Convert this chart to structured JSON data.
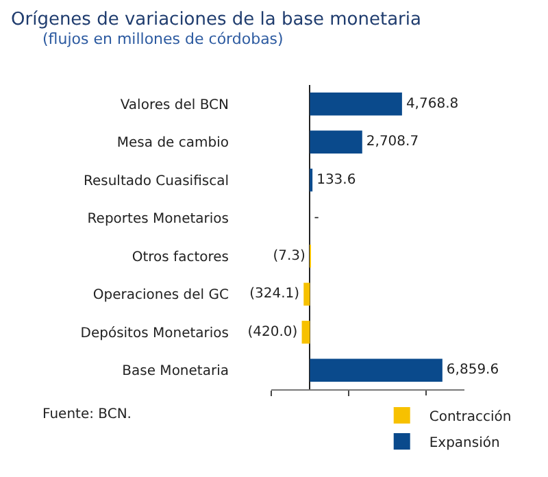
{
  "chart_data": {
    "type": "bar",
    "orientation": "horizontal",
    "title": "Orígenes de variaciones de la base monetaria",
    "subtitle": "(flujos en millones de córdobas)",
    "categories": [
      "Valores del BCN",
      "Mesa de cambio",
      "Resultado Cuasifiscal",
      "Reportes Monetarios",
      "Otros factores",
      "Operaciones del GC",
      "Depósitos Monetarios",
      "Base Monetaria"
    ],
    "series": [
      {
        "name": "Contracción",
        "color": "#f7c100",
        "values": [
          null,
          null,
          null,
          null,
          -7.3,
          -324.1,
          -420.0,
          null
        ],
        "value_labels": [
          null,
          null,
          null,
          null,
          "(7.3)",
          "(324.1)",
          "(420.0)",
          null
        ]
      },
      {
        "name": "Expansión",
        "color": "#0a4a8c",
        "values": [
          4768.8,
          2708.7,
          133.6,
          0,
          null,
          null,
          null,
          6859.6
        ],
        "value_labels": [
          "4,768.8",
          "2,708.7",
          "133.6",
          "-",
          null,
          null,
          null,
          "6,859.6"
        ]
      }
    ],
    "xlim": [
      -2000,
      8000
    ],
    "xticks": [
      {
        "value": -2000,
        "label": null
      },
      {
        "value": 2000,
        "label": null
      },
      {
        "value": 6000,
        "label": null
      }
    ],
    "tick_labels": "y",
    "grid": false,
    "legend": "bottom",
    "annotations": [
      "Fuente: BCN."
    ]
  }
}
